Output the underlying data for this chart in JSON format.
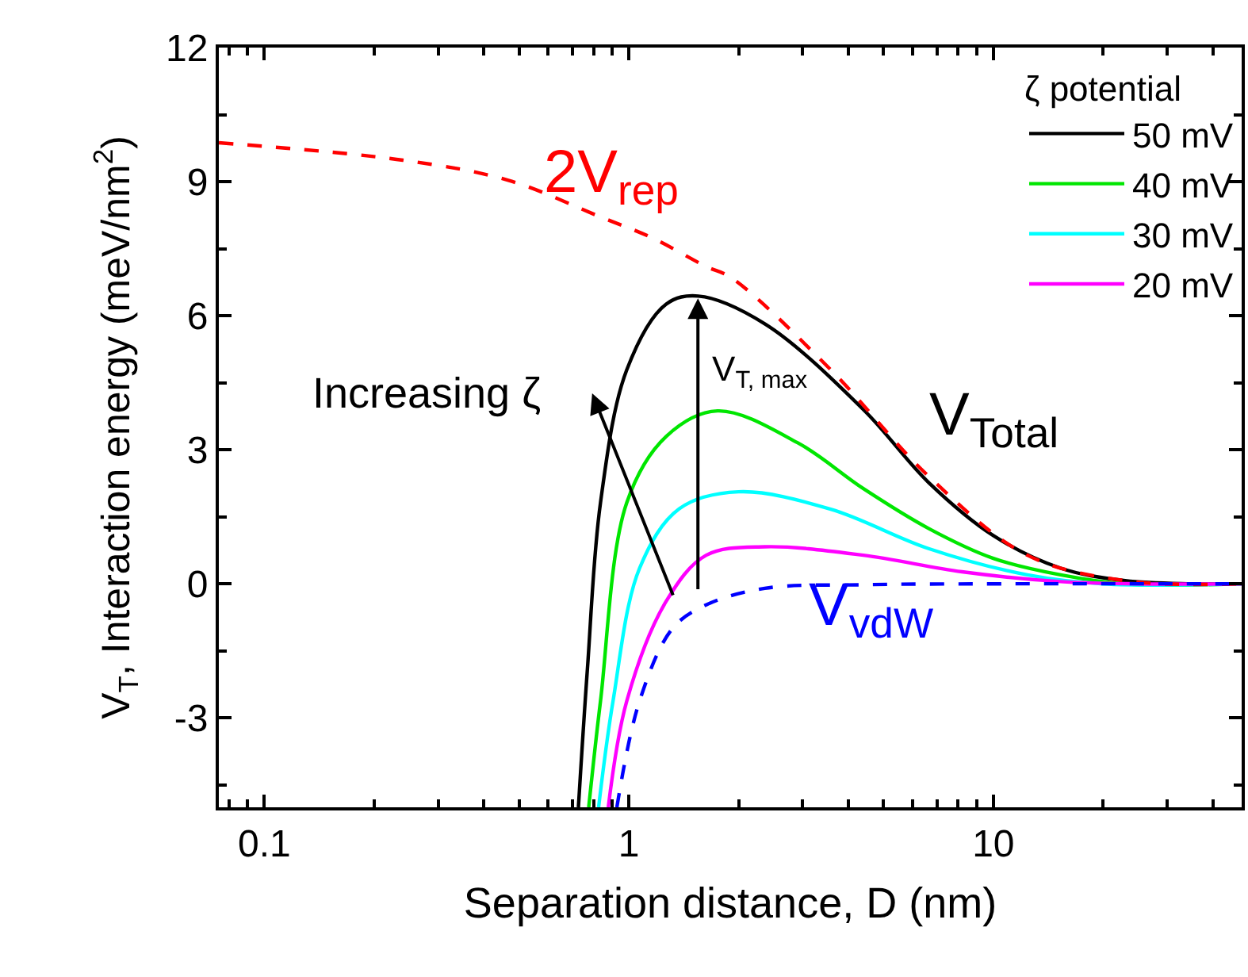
{
  "chart_data": {
    "type": "line",
    "xlabel": "Separation distance, D (nm)",
    "ylabel": "V$_{T}$, Interaction energy (meV/nm$^{2}$)",
    "legend_title": "ζ potential",
    "log": "x",
    "legend": "top right",
    "marker": "none",
    "xlim": [
      0.075,
      48
    ],
    "xticks": [
      0.1,
      1,
      10
    ],
    "ylim": [
      -5,
      12
    ],
    "yticks": [
      -3,
      0,
      3,
      6,
      9,
      12
    ],
    "series": [
      {
        "name": "50 mV",
        "color": "#000000",
        "line_style": "solid",
        "x": [
          0.727,
          0.77,
          0.836,
          0.987,
          1.266,
          1.55,
          2.36,
          4.4,
          6.64,
          10,
          15.3,
          23,
          35,
          48
        ],
        "values": [
          -5,
          -1.88,
          1.82,
          4.79,
          6.26,
          6.44,
          5.82,
          3.9,
          2.27,
          1.08,
          0.35,
          0.07,
          0,
          0
        ]
      },
      {
        "name": "40 mV",
        "color": "#00e600",
        "line_style": "solid",
        "x": [
          0.776,
          0.836,
          0.987,
          1.266,
          1.75,
          2.9,
          4.4,
          6.64,
          10,
          15.3,
          23,
          48
        ],
        "values": [
          -5,
          -2.62,
          1.82,
          3.3,
          3.87,
          3.16,
          2.13,
          1.24,
          0.57,
          0.2,
          0,
          0
        ]
      },
      {
        "name": "30 mV",
        "color": "#00ffff",
        "line_style": "solid",
        "x": [
          0.826,
          0.905,
          1.07,
          1.375,
          2.0,
          3.58,
          6.64,
          12.4,
          20,
          48
        ],
        "values": [
          -5,
          -2.62,
          0.35,
          1.68,
          2.06,
          1.67,
          0.79,
          0.2,
          0,
          0
        ]
      },
      {
        "name": "20 mV",
        "color": "#ff00ff",
        "line_style": "solid",
        "x": [
          0.878,
          0.987,
          1.266,
          1.63,
          2.36,
          4.4,
          8.2,
          15.3,
          25,
          48
        ],
        "values": [
          -5,
          -2.62,
          -0.39,
          0.64,
          0.83,
          0.64,
          0.27,
          0.05,
          0,
          0
        ]
      },
      {
        "color": "#ff0000",
        "line_style": "dashed",
        "x": [
          0.075,
          0.24,
          0.467,
          0.836,
          1.16,
          1.63,
          1.91,
          3.58,
          6.64,
          12.4,
          23,
          48
        ],
        "values": [
          9.87,
          9.48,
          9.03,
          8.21,
          7.74,
          7.1,
          6.85,
          4.79,
          2.41,
          0.64,
          0.07,
          0
        ]
      },
      {
        "color": "#0000ff",
        "line_style": "dashed",
        "x": [
          0.927,
          1.07,
          1.32,
          1.63,
          2.36,
          4.4,
          10,
          48
        ],
        "values": [
          -5,
          -2.62,
          -0.99,
          -0.47,
          -0.1,
          -0.02,
          0,
          0
        ]
      }
    ],
    "annotations": [
      "2V$_{rep}$",
      "V$_{Total}$",
      "V$_{vdW}$",
      "V$_{T, max}$",
      "Increasing ζ"
    ]
  }
}
